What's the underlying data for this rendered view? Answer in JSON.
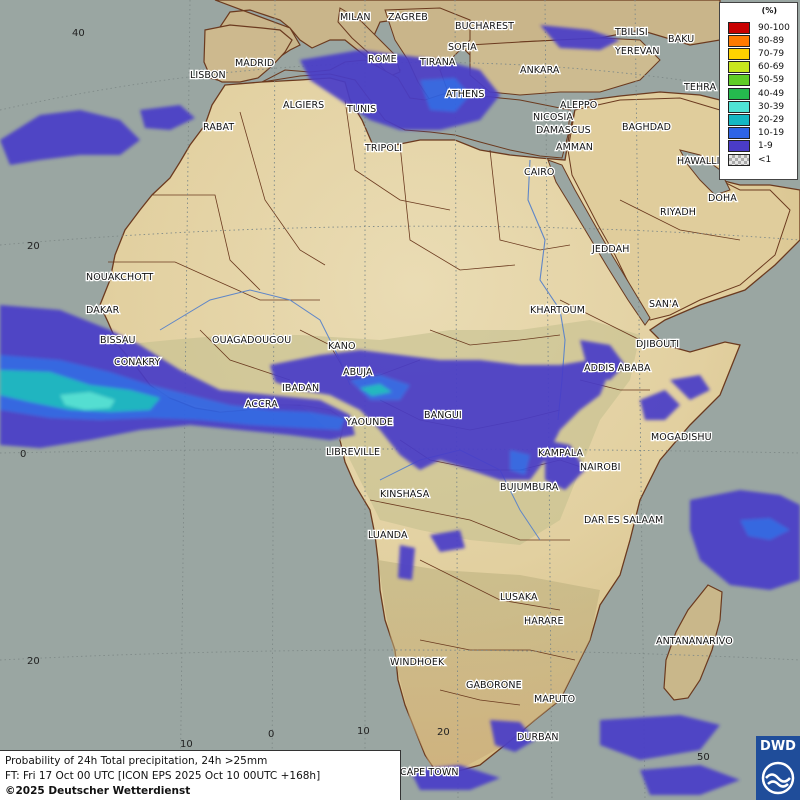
{
  "map": {
    "cities": [
      {
        "name": "MILAN"
      },
      {
        "name": "ZAGREB"
      },
      {
        "name": "BUCHAREST"
      },
      {
        "name": "SOFIA"
      },
      {
        "name": "TIRANA"
      },
      {
        "name": "ANKARA"
      },
      {
        "name": "TBILISI"
      },
      {
        "name": "BAKU"
      },
      {
        "name": "YEREVAN"
      },
      {
        "name": "TEHRA"
      },
      {
        "name": "MADRID"
      },
      {
        "name": "LISBON"
      },
      {
        "name": "ROME"
      },
      {
        "name": "ALGIERS"
      },
      {
        "name": "TUNIS"
      },
      {
        "name": "ATHENS"
      },
      {
        "name": "ALEPPO"
      },
      {
        "name": "RABAT"
      },
      {
        "name": "NICOSIA"
      },
      {
        "name": "BAGHDAD"
      },
      {
        "name": "DAMASCUS"
      },
      {
        "name": "AMMAN"
      },
      {
        "name": "TRIPOLI"
      },
      {
        "name": "HAWALLI"
      },
      {
        "name": "CAIRO"
      },
      {
        "name": "DOHA"
      },
      {
        "name": "RIYADH"
      },
      {
        "name": "JEDDAH"
      },
      {
        "name": "NOUAKCHOTT"
      },
      {
        "name": "SAN'A"
      },
      {
        "name": "DAKAR"
      },
      {
        "name": "KHARTOUM"
      },
      {
        "name": "BISSAU"
      },
      {
        "name": "OUAGADOUGOU"
      },
      {
        "name": "KANO"
      },
      {
        "name": "DJIBOUTI"
      },
      {
        "name": "CONAKRY"
      },
      {
        "name": "ABUJA"
      },
      {
        "name": "ADDIS ABABA"
      },
      {
        "name": "IBADAN"
      },
      {
        "name": "ACCRA"
      },
      {
        "name": "BANGUI"
      },
      {
        "name": "YAOUNDE"
      },
      {
        "name": "MOGADISHU"
      },
      {
        "name": "LIBREVILLE"
      },
      {
        "name": "KAMPALA"
      },
      {
        "name": "NAIROBI"
      },
      {
        "name": "BUJUMBURA"
      },
      {
        "name": "KINSHASA"
      },
      {
        "name": "DAR ES SALAAM"
      },
      {
        "name": "LUANDA"
      },
      {
        "name": "LUSAKA"
      },
      {
        "name": "HARARE"
      },
      {
        "name": "ANTANANARIVO"
      },
      {
        "name": "WINDHOEK"
      },
      {
        "name": "GABORONE"
      },
      {
        "name": "MAPUTO"
      },
      {
        "name": "DURBAN"
      },
      {
        "name": "CAPE TOWN"
      }
    ],
    "lat_labels": [
      "40",
      "20",
      "0",
      "20"
    ],
    "lon_labels": [
      "10",
      "0",
      "10",
      "20",
      "50"
    ]
  },
  "legend": {
    "unit": "(%)",
    "classes": [
      {
        "label": "90-100",
        "color": "#c80000"
      },
      {
        "label": "80-89",
        "color": "#ff7a00"
      },
      {
        "label": "70-79",
        "color": "#ffd200"
      },
      {
        "label": "60-69",
        "color": "#c8e61e"
      },
      {
        "label": "50-59",
        "color": "#5fcc26"
      },
      {
        "label": "40-49",
        "color": "#25b94e"
      },
      {
        "label": "30-39",
        "color": "#4fe3d5"
      },
      {
        "label": "20-29",
        "color": "#14b7c3"
      },
      {
        "label": "10-19",
        "color": "#2e64e6"
      },
      {
        "label": "1-9",
        "color": "#4a3cc8"
      },
      {
        "label": "<1",
        "color": "#bfbfbf"
      }
    ]
  },
  "caption": {
    "line1": "Probability of 24h Total precipitation, 24h >25mm",
    "line2": "FT: Fri 17 Oct 00 UTC [ICON EPS 2025 Oct 10 00UTC +168h]",
    "line3": "©2025 Deutscher Wetterdienst"
  },
  "logo": {
    "text": "DWD"
  }
}
